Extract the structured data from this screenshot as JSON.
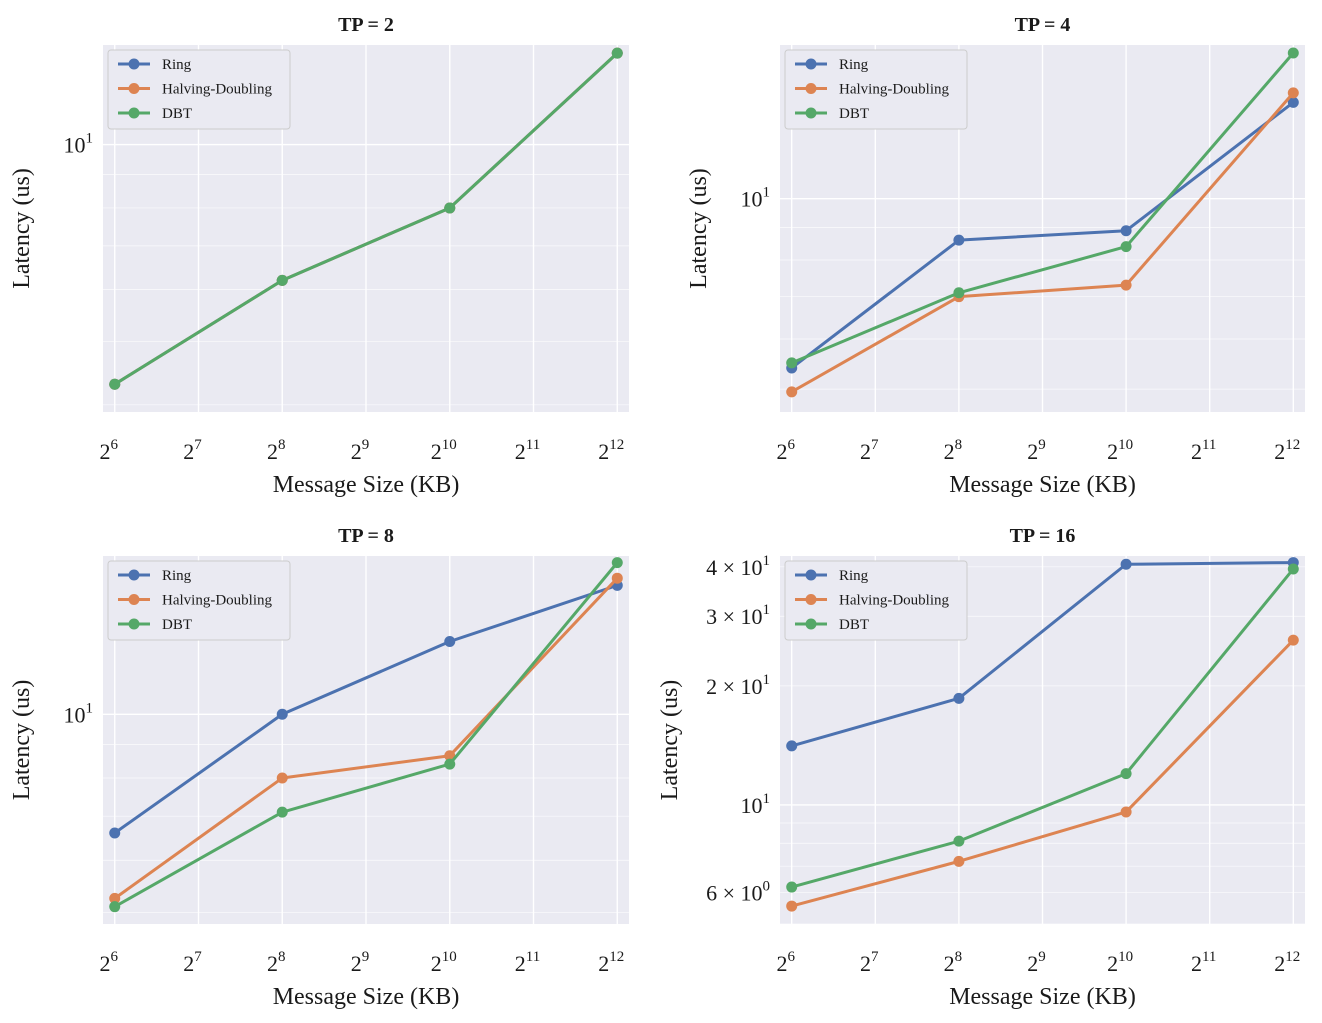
{
  "chart_data": [
    {
      "type": "line",
      "title": "TP = 2",
      "xlabel": "Message Size (KB)",
      "ylabel": "Latency (us)",
      "xscale": "log2",
      "yscale": "log10",
      "x": [
        64,
        256,
        1024,
        4096
      ],
      "xticks": [
        {
          "base": "2",
          "exp": "6"
        },
        {
          "base": "2",
          "exp": "7"
        },
        {
          "base": "2",
          "exp": "8"
        },
        {
          "base": "2",
          "exp": "9"
        },
        {
          "base": "2",
          "exp": "10"
        },
        {
          "base": "2",
          "exp": "11"
        },
        {
          "base": "2",
          "exp": "12"
        }
      ],
      "yticks": [
        {
          "value": 10,
          "mant": "",
          "base": "10",
          "exp": "1"
        }
      ],
      "ylim": [
        3.9,
        14.2
      ],
      "legend": "top-left",
      "grid": true,
      "series": [
        {
          "name": "Ring",
          "color": "#4c72b0",
          "values": [
            4.3,
            6.2,
            8.0,
            13.8
          ]
        },
        {
          "name": "Halving-Doubling",
          "color": "#dd8452",
          "values": [
            4.3,
            6.2,
            8.0,
            13.8
          ]
        },
        {
          "name": "DBT",
          "color": "#55a868",
          "values": [
            4.3,
            6.2,
            8.0,
            13.8
          ]
        }
      ]
    },
    {
      "type": "line",
      "title": "TP = 4",
      "xlabel": "Message Size (KB)",
      "ylabel": "Latency (us)",
      "xscale": "log2",
      "yscale": "log10",
      "x": [
        64,
        256,
        1024,
        4096
      ],
      "xticks": [
        {
          "base": "2",
          "exp": "6"
        },
        {
          "base": "2",
          "exp": "7"
        },
        {
          "base": "2",
          "exp": "8"
        },
        {
          "base": "2",
          "exp": "9"
        },
        {
          "base": "2",
          "exp": "10"
        },
        {
          "base": "2",
          "exp": "11"
        },
        {
          "base": "2",
          "exp": "12"
        }
      ],
      "yticks": [
        {
          "value": 10,
          "mant": "",
          "base": "10",
          "exp": "1"
        }
      ],
      "ylim": [
        4.6,
        17.5
      ],
      "legend": "top-left",
      "grid": true,
      "series": [
        {
          "name": "Ring",
          "color": "#4c72b0",
          "values": [
            5.4,
            8.6,
            8.9,
            14.2
          ]
        },
        {
          "name": "Halving-Doubling",
          "color": "#dd8452",
          "values": [
            4.95,
            7.0,
            7.3,
            14.7
          ]
        },
        {
          "name": "DBT",
          "color": "#55a868",
          "values": [
            5.5,
            7.1,
            8.4,
            17.0
          ]
        }
      ]
    },
    {
      "type": "line",
      "title": "TP = 8",
      "xlabel": "Message Size (KB)",
      "ylabel": "Latency (us)",
      "xscale": "log2",
      "yscale": "log10",
      "x": [
        64,
        256,
        1024,
        4096
      ],
      "xticks": [
        {
          "base": "2",
          "exp": "6"
        },
        {
          "base": "2",
          "exp": "7"
        },
        {
          "base": "2",
          "exp": "8"
        },
        {
          "base": "2",
          "exp": "9"
        },
        {
          "base": "2",
          "exp": "10"
        },
        {
          "base": "2",
          "exp": "11"
        },
        {
          "base": "2",
          "exp": "12"
        }
      ],
      "yticks": [
        {
          "value": 10,
          "mant": "",
          "base": "10",
          "exp": "1"
        }
      ],
      "ylim": [
        4.8,
        17.4
      ],
      "legend": "top-left",
      "grid": true,
      "series": [
        {
          "name": "Ring",
          "color": "#4c72b0",
          "values": [
            6.6,
            10.0,
            12.9,
            15.7
          ]
        },
        {
          "name": "Halving-Doubling",
          "color": "#dd8452",
          "values": [
            5.25,
            8.0,
            8.65,
            16.1
          ]
        },
        {
          "name": "DBT",
          "color": "#55a868",
          "values": [
            5.1,
            7.1,
            8.4,
            17.0
          ]
        }
      ]
    },
    {
      "type": "line",
      "title": "TP = 16",
      "xlabel": "Message Size (KB)",
      "ylabel": "Latency (us)",
      "xscale": "log2",
      "yscale": "log10",
      "x": [
        64,
        256,
        1024,
        4096
      ],
      "xticks": [
        {
          "base": "2",
          "exp": "6"
        },
        {
          "base": "2",
          "exp": "7"
        },
        {
          "base": "2",
          "exp": "8"
        },
        {
          "base": "2",
          "exp": "9"
        },
        {
          "base": "2",
          "exp": "10"
        },
        {
          "base": "2",
          "exp": "11"
        },
        {
          "base": "2",
          "exp": "12"
        }
      ],
      "yticks": [
        {
          "value": 40,
          "mant": "4 × ",
          "base": "10",
          "exp": "1"
        },
        {
          "value": 30,
          "mant": "3 × ",
          "base": "10",
          "exp": "1"
        },
        {
          "value": 20,
          "mant": "2 × ",
          "base": "10",
          "exp": "1"
        },
        {
          "value": 10,
          "mant": "",
          "base": "10",
          "exp": "1"
        },
        {
          "value": 6,
          "mant": "6 × ",
          "base": "10",
          "exp": "0"
        }
      ],
      "ylim": [
        5.0,
        42.6
      ],
      "legend": "top-left",
      "grid": true,
      "series": [
        {
          "name": "Ring",
          "color": "#4c72b0",
          "values": [
            14.1,
            18.6,
            40.6,
            41.0
          ]
        },
        {
          "name": "Halving-Doubling",
          "color": "#dd8452",
          "values": [
            5.55,
            7.2,
            9.6,
            26.1
          ]
        },
        {
          "name": "DBT",
          "color": "#55a868",
          "values": [
            6.2,
            8.1,
            12.0,
            39.5
          ]
        }
      ]
    }
  ]
}
